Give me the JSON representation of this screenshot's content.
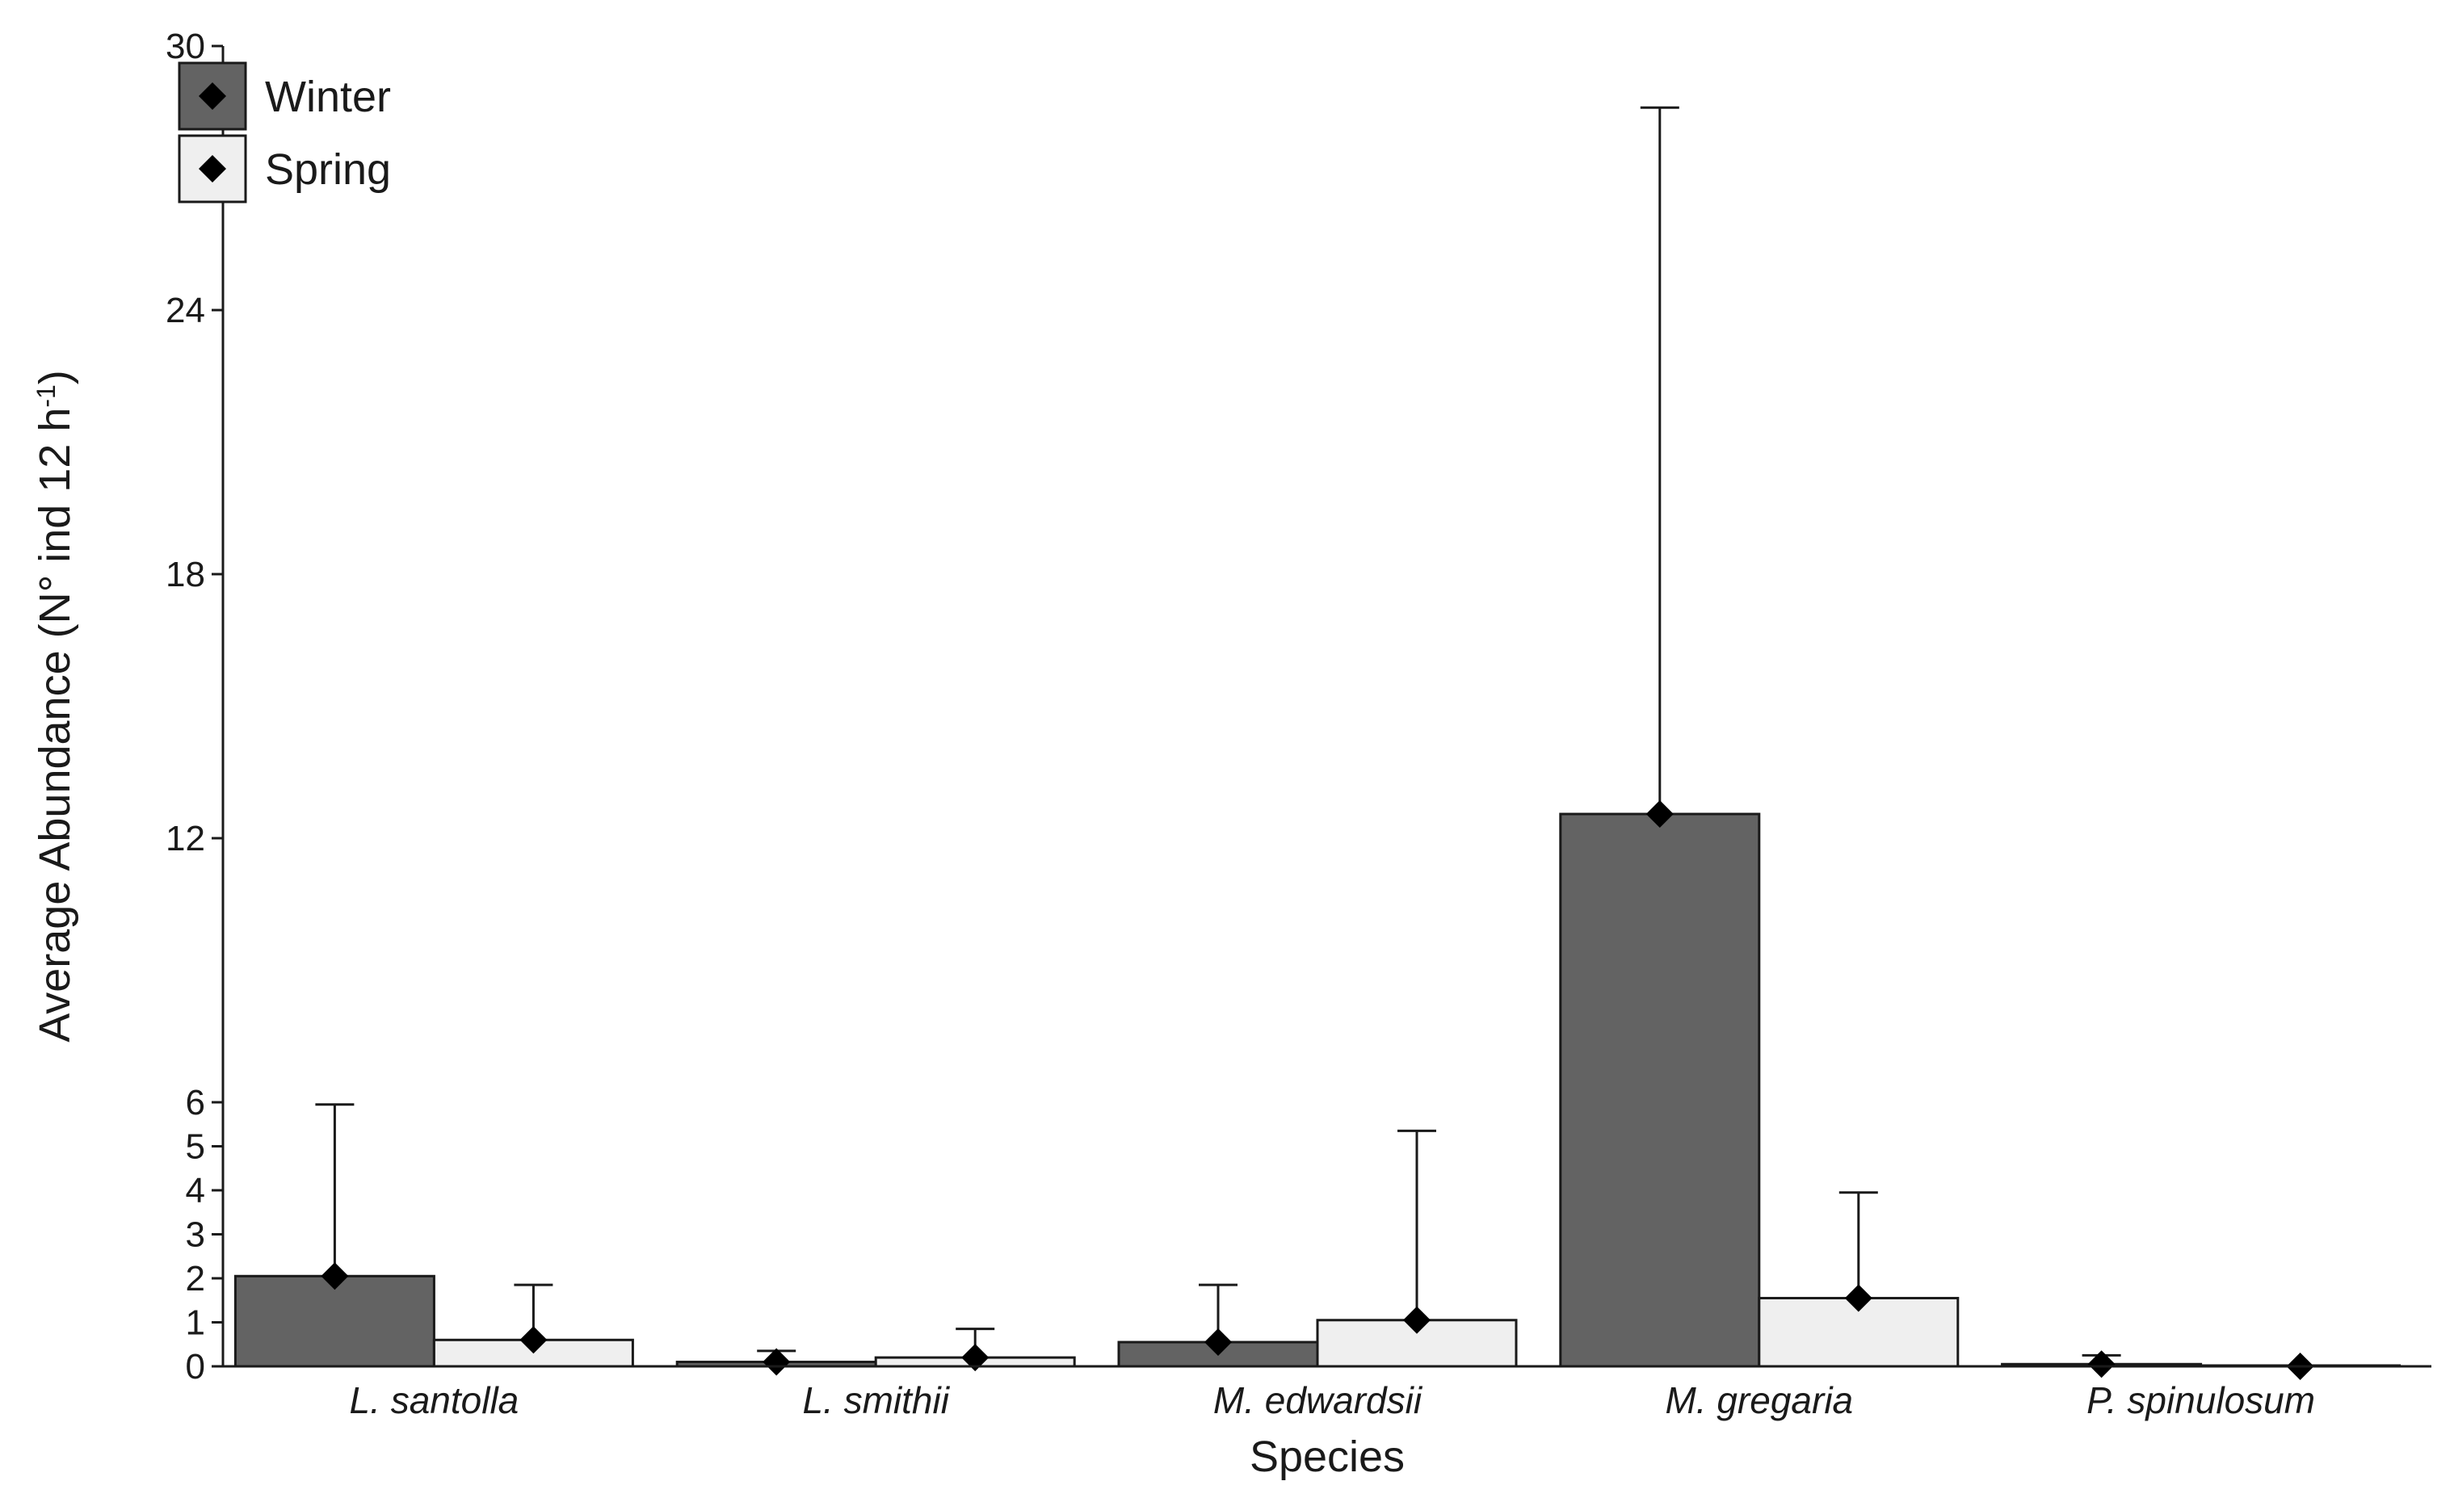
{
  "chart_data": {
    "type": "bar",
    "title": "",
    "xlabel": "Species",
    "ylabel": "Average Abundance (N° ind 12 h",
    "ylabel_superscript": "-1",
    "ylabel_suffix": ")",
    "categories": [
      "L. santolla",
      "L. smithii",
      "M. edwardsii",
      "M. gregaria",
      "P. spinulosum"
    ],
    "series": [
      {
        "name": "Winter",
        "color": "#636363",
        "values": [
          2.05,
          0.1,
          0.55,
          12.55,
          0.05
        ],
        "error_upper": [
          5.95,
          0.35,
          1.85,
          28.6,
          0.25
        ]
      },
      {
        "name": "Spring",
        "color": "#efefef",
        "values": [
          0.6,
          0.2,
          1.05,
          1.55,
          0.0
        ],
        "error_upper": [
          1.85,
          0.85,
          5.35,
          3.95,
          0.0
        ]
      }
    ],
    "y_ticks": [
      0,
      1,
      2,
      3,
      4,
      5,
      6,
      12,
      18,
      24,
      30
    ],
    "y_scale": "non-linear: 0–6 expanded, 6–30 compressed",
    "ylim": [
      0,
      30
    ],
    "grid": false,
    "legend_position": "top-left",
    "marker": "diamond"
  }
}
